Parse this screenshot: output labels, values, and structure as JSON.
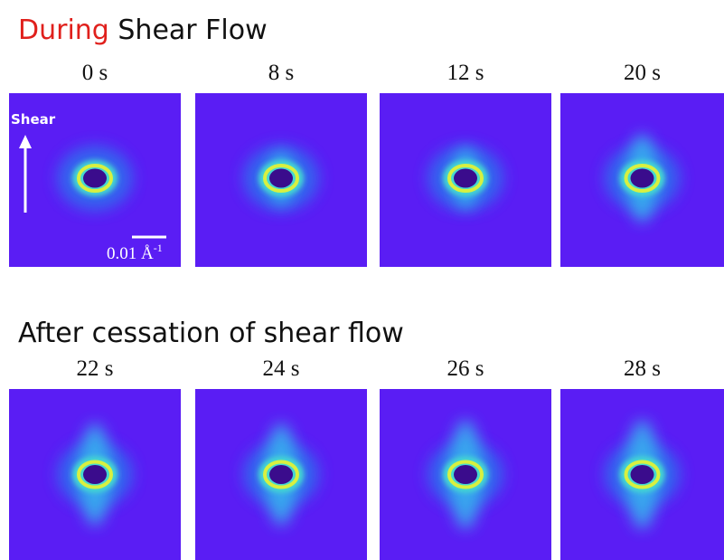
{
  "sections": [
    {
      "title_highlight": "During",
      "title_rest": "Shear Flow",
      "panels": [
        {
          "time": "0 s"
        },
        {
          "time": "8 s"
        },
        {
          "time": "12 s"
        },
        {
          "time": "20 s"
        }
      ]
    },
    {
      "title_rest": "After cessation of shear flow",
      "panels": [
        {
          "time": "22 s"
        },
        {
          "time": "24 s"
        },
        {
          "time": "26 s"
        },
        {
          "time": "28 s"
        }
      ]
    }
  ],
  "shear_label": "Shear",
  "scale_label": "0.01 Å",
  "scale_exponent": "-1"
}
